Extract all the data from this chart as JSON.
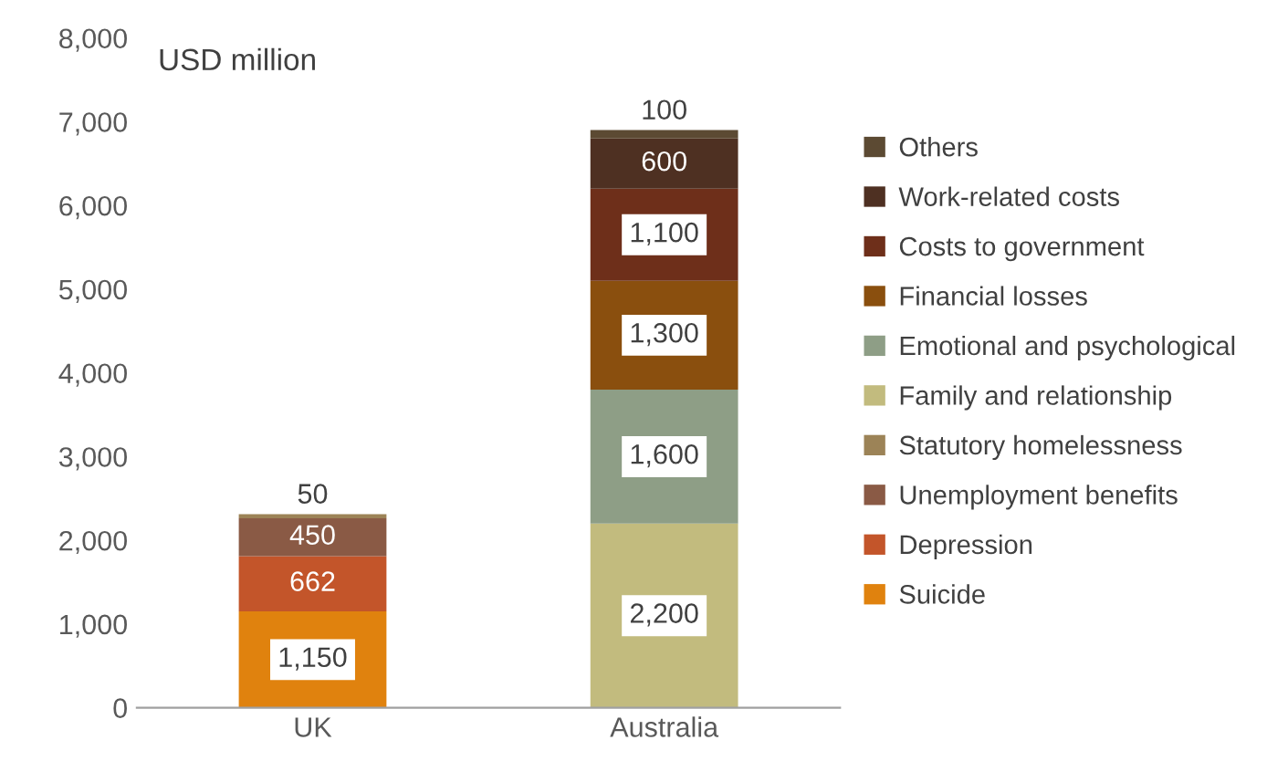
{
  "chart_data": {
    "type": "bar",
    "stacked": true,
    "ylabel": "USD million",
    "categories": [
      "UK",
      "Australia"
    ],
    "series": [
      {
        "name": "Suicide",
        "color": "#e0820e",
        "values": [
          1150,
          null
        ],
        "value_labels": [
          "1,150",
          null
        ]
      },
      {
        "name": "Depression",
        "color": "#c3552a",
        "values": [
          662,
          null
        ],
        "value_labels": [
          "662",
          null
        ]
      },
      {
        "name": "Unemployment benefits",
        "color": "#8a5a45",
        "values": [
          450,
          null
        ],
        "value_labels": [
          "450",
          null
        ]
      },
      {
        "name": "Statutory homelessness",
        "color": "#9c8357",
        "values": [
          50,
          null
        ],
        "value_labels": [
          "50",
          null
        ]
      },
      {
        "name": "Family and relationship",
        "color": "#c2bb7e",
        "values": [
          null,
          2200
        ],
        "value_labels": [
          null,
          "2,200"
        ]
      },
      {
        "name": "Emotional and psychological",
        "color": "#8e9e86",
        "values": [
          null,
          1600
        ],
        "value_labels": [
          null,
          "1,600"
        ]
      },
      {
        "name": "Financial losses",
        "color": "#8a4f0e",
        "values": [
          null,
          1300
        ],
        "value_labels": [
          null,
          "1,300"
        ]
      },
      {
        "name": "Costs to government",
        "color": "#6e2f1a",
        "values": [
          null,
          1100
        ],
        "value_labels": [
          null,
          "1,100"
        ]
      },
      {
        "name": "Work-related costs",
        "color": "#4e3022",
        "values": [
          null,
          600
        ],
        "value_labels": [
          null,
          "600"
        ]
      },
      {
        "name": "Others",
        "color": "#5c4a33",
        "values": [
          null,
          100
        ],
        "value_labels": [
          null,
          "100"
        ]
      }
    ],
    "ylim": [
      0,
      8000
    ],
    "yticks": [
      {
        "value": 0,
        "label": "0"
      },
      {
        "value": 1000,
        "label": "1,000"
      },
      {
        "value": 2000,
        "label": "2,000"
      },
      {
        "value": 3000,
        "label": "3,000"
      },
      {
        "value": 4000,
        "label": "4,000"
      },
      {
        "value": 5000,
        "label": "5,000"
      },
      {
        "value": 6000,
        "label": "6,000"
      },
      {
        "value": 7000,
        "label": "7,000"
      },
      {
        "value": 8000,
        "label": "8,000"
      }
    ],
    "grid": false,
    "legend": "right"
  }
}
